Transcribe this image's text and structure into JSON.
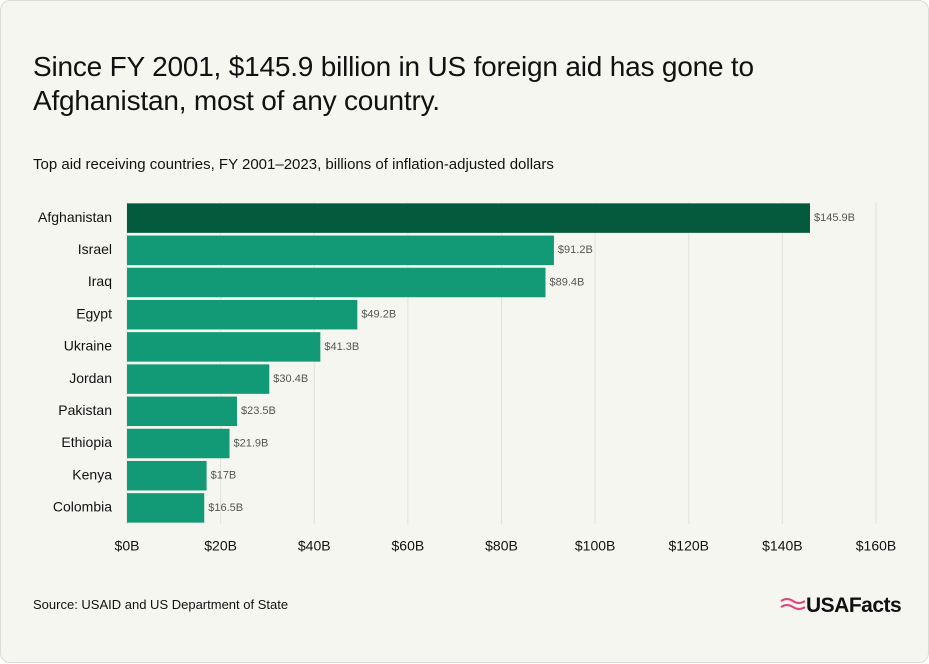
{
  "chart_data": {
    "type": "barh",
    "title": "Since FY 2001, $145.9 billion in US foreign aid has gone to Afghanistan, most of any country.",
    "subtitle": "Top aid receiving countries, FY 2001–2023, billions of inflation-adjusted dollars",
    "categories": [
      "Afghanistan",
      "Israel",
      "Iraq",
      "Egypt",
      "Ukraine",
      "Jordan",
      "Pakistan",
      "Ethiopia",
      "Kenya",
      "Colombia"
    ],
    "values": [
      145.9,
      91.2,
      89.4,
      49.2,
      41.3,
      30.4,
      23.5,
      21.9,
      17,
      16.5
    ],
    "value_labels": [
      "$145.9B",
      "$91.2B",
      "$89.4B",
      "$49.2B",
      "$41.3B",
      "$30.4B",
      "$23.5B",
      "$21.9B",
      "$17B",
      "$16.5B"
    ],
    "colors": [
      "#045a3c",
      "#129a76",
      "#129a76",
      "#129a76",
      "#129a76",
      "#129a76",
      "#129a76",
      "#129a76",
      "#129a76",
      "#129a76"
    ],
    "xlim": [
      0,
      160
    ],
    "xticks": [
      {
        "value": 0,
        "label": "$0B"
      },
      {
        "value": 20,
        "label": "$20B"
      },
      {
        "value": 40,
        "label": "$40B"
      },
      {
        "value": 60,
        "label": "$60B"
      },
      {
        "value": 80,
        "label": "$80B"
      },
      {
        "value": 100,
        "label": "$100B"
      },
      {
        "value": 120,
        "label": "$120B"
      },
      {
        "value": 140,
        "label": "$140B"
      },
      {
        "value": 160,
        "label": "$160B"
      }
    ],
    "grid": true,
    "source": "Source: USAID and US Department of State",
    "logo": "USAFacts"
  }
}
